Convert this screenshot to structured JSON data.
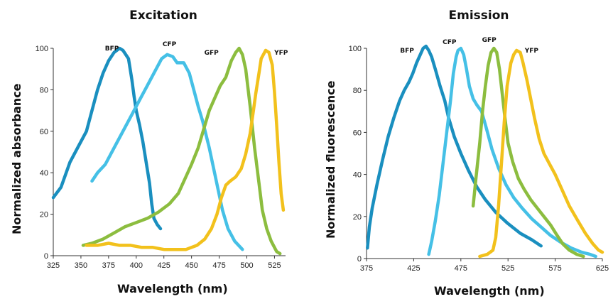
{
  "chart_data": [
    {
      "type": "line",
      "title": "Excitation",
      "xlabel": "Wavelength (nm)",
      "ylabel": "Normalized absorbance",
      "xlim": [
        325,
        535
      ],
      "ylim": [
        0,
        100
      ],
      "xticks": [
        325,
        350,
        375,
        400,
        425,
        450,
        475,
        500,
        525
      ],
      "yticks": [
        0,
        20,
        40,
        60,
        80,
        100
      ],
      "series": [
        {
          "name": "BFP",
          "color": "#1a8fbf",
          "label_at": [
            378,
            99
          ],
          "points": [
            [
              325,
              28
            ],
            [
              332,
              33
            ],
            [
              340,
              45
            ],
            [
              348,
              53
            ],
            [
              355,
              60
            ],
            [
              360,
              70
            ],
            [
              365,
              80
            ],
            [
              370,
              88
            ],
            [
              375,
              94
            ],
            [
              380,
              98
            ],
            [
              385,
              100
            ],
            [
              388,
              99
            ],
            [
              393,
              95
            ],
            [
              396,
              85
            ],
            [
              398,
              77
            ],
            [
              400,
              70
            ],
            [
              403,
              63
            ],
            [
              406,
              55
            ],
            [
              409,
              45
            ],
            [
              412,
              35
            ],
            [
              414,
              25
            ],
            [
              416,
              18
            ],
            [
              419,
              15
            ],
            [
              422,
              13
            ]
          ]
        },
        {
          "name": "CFP",
          "color": "#45c0e6",
          "label_at": [
            430,
            101
          ],
          "points": [
            [
              360,
              36
            ],
            [
              365,
              40
            ],
            [
              372,
              44
            ],
            [
              380,
              52
            ],
            [
              388,
              60
            ],
            [
              396,
              68
            ],
            [
              404,
              76
            ],
            [
              412,
              84
            ],
            [
              418,
              90
            ],
            [
              423,
              95
            ],
            [
              428,
              97
            ],
            [
              433,
              96
            ],
            [
              437,
              93
            ],
            [
              443,
              93
            ],
            [
              448,
              88
            ],
            [
              452,
              80
            ],
            [
              456,
              72
            ],
            [
              460,
              65
            ],
            [
              466,
              52
            ],
            [
              470,
              42
            ],
            [
              474,
              32
            ],
            [
              478,
              22
            ],
            [
              483,
              13
            ],
            [
              489,
              7
            ],
            [
              496,
              3
            ]
          ]
        },
        {
          "name": "GFP",
          "color": "#8cbd3f",
          "label_at": [
            468,
            97
          ],
          "points": [
            [
              352,
              5
            ],
            [
              360,
              6
            ],
            [
              370,
              8
            ],
            [
              380,
              11
            ],
            [
              390,
              14
            ],
            [
              400,
              16
            ],
            [
              410,
              18
            ],
            [
              420,
              21
            ],
            [
              430,
              25
            ],
            [
              438,
              30
            ],
            [
              444,
              37
            ],
            [
              450,
              44
            ],
            [
              456,
              52
            ],
            [
              461,
              61
            ],
            [
              466,
              70
            ],
            [
              471,
              76
            ],
            [
              476,
              82
            ],
            [
              481,
              86
            ],
            [
              486,
              94
            ],
            [
              490,
              98
            ],
            [
              493,
              100
            ],
            [
              496,
              97
            ],
            [
              499,
              90
            ],
            [
              503,
              72
            ],
            [
              507,
              52
            ],
            [
              511,
              35
            ],
            [
              514,
              22
            ],
            [
              518,
              13
            ],
            [
              522,
              7
            ],
            [
              527,
              2
            ],
            [
              530,
              1
            ]
          ]
        },
        {
          "name": "YFP",
          "color": "#f2c11c",
          "label_at": [
            531,
            97
          ],
          "points": [
            [
              355,
              5
            ],
            [
              365,
              5
            ],
            [
              375,
              6
            ],
            [
              385,
              5
            ],
            [
              395,
              5
            ],
            [
              405,
              4
            ],
            [
              415,
              4
            ],
            [
              425,
              3
            ],
            [
              435,
              3
            ],
            [
              445,
              3
            ],
            [
              455,
              5
            ],
            [
              462,
              8
            ],
            [
              468,
              13
            ],
            [
              473,
              20
            ],
            [
              477,
              28
            ],
            [
              481,
              34
            ],
            [
              485,
              36
            ],
            [
              490,
              38
            ],
            [
              495,
              42
            ],
            [
              499,
              49
            ],
            [
              503,
              59
            ],
            [
              506,
              70
            ],
            [
              508,
              78
            ],
            [
              511,
              88
            ],
            [
              513,
              95
            ],
            [
              517,
              99
            ],
            [
              520,
              98
            ],
            [
              523,
              92
            ],
            [
              525,
              79
            ],
            [
              527,
              63
            ],
            [
              529,
              45
            ],
            [
              531,
              30
            ],
            [
              533,
              22
            ]
          ]
        }
      ]
    },
    {
      "type": "line",
      "title": "Emission",
      "xlabel": "Wavelength (nm)",
      "ylabel": "Normalized fluorescence",
      "xlim": [
        375,
        625
      ],
      "ylim": [
        0,
        100
      ],
      "xticks": [
        375,
        425,
        475,
        525,
        575,
        625
      ],
      "yticks": [
        0,
        20,
        40,
        60,
        80,
        100
      ],
      "series": [
        {
          "name": "BFP",
          "color": "#1a8fbf",
          "label_at": [
            418,
            98
          ],
          "points": [
            [
              376,
              5
            ],
            [
              378,
              15
            ],
            [
              381,
              24
            ],
            [
              386,
              35
            ],
            [
              392,
              47
            ],
            [
              398,
              58
            ],
            [
              404,
              67
            ],
            [
              410,
              75
            ],
            [
              415,
              80
            ],
            [
              420,
              84
            ],
            [
              424,
              88
            ],
            [
              428,
              93
            ],
            [
              432,
              97
            ],
            [
              435,
              100
            ],
            [
              438,
              101
            ],
            [
              441,
              99
            ],
            [
              444,
              96
            ],
            [
              448,
              90
            ],
            [
              453,
              82
            ],
            [
              458,
              75
            ],
            [
              462,
              67
            ],
            [
              468,
              58
            ],
            [
              475,
              50
            ],
            [
              483,
              42
            ],
            [
              492,
              34
            ],
            [
              501,
              28
            ],
            [
              512,
              22
            ],
            [
              524,
              17
            ],
            [
              538,
              12
            ],
            [
              550,
              9
            ],
            [
              560,
              6
            ]
          ]
        },
        {
          "name": "CFP",
          "color": "#45c0e6",
          "label_at": [
            463,
            102
          ],
          "points": [
            [
              441,
              2
            ],
            [
              444,
              8
            ],
            [
              448,
              18
            ],
            [
              452,
              30
            ],
            [
              456,
              45
            ],
            [
              460,
              60
            ],
            [
              464,
              75
            ],
            [
              467,
              88
            ],
            [
              470,
              96
            ],
            [
              472,
              99
            ],
            [
              475,
              100
            ],
            [
              478,
              97
            ],
            [
              481,
              90
            ],
            [
              484,
              82
            ],
            [
              488,
              76
            ],
            [
              492,
              73
            ],
            [
              497,
              70
            ],
            [
              502,
              62
            ],
            [
              508,
              52
            ],
            [
              515,
              43
            ],
            [
              523,
              35
            ],
            [
              531,
              29
            ],
            [
              540,
              24
            ],
            [
              550,
              19
            ],
            [
              560,
              15
            ],
            [
              570,
              11
            ],
            [
              580,
              8
            ],
            [
              592,
              5
            ],
            [
              603,
              3
            ],
            [
              612,
              2
            ],
            [
              618,
              1
            ]
          ]
        },
        {
          "name": "GFP",
          "color": "#8cbd3f",
          "label_at": [
            505,
            103
          ],
          "points": [
            [
              488,
              25
            ],
            [
              491,
              38
            ],
            [
              495,
              55
            ],
            [
              498,
              70
            ],
            [
              501,
              82
            ],
            [
              504,
              92
            ],
            [
              507,
              98
            ],
            [
              510,
              100
            ],
            [
              513,
              98
            ],
            [
              516,
              90
            ],
            [
              519,
              78
            ],
            [
              522,
              66
            ],
            [
              525,
              55
            ],
            [
              530,
              46
            ],
            [
              536,
              38
            ],
            [
              542,
              33
            ],
            [
              549,
              28
            ],
            [
              556,
              24
            ],
            [
              563,
              20
            ],
            [
              570,
              16
            ],
            [
              577,
              11
            ],
            [
              583,
              7
            ],
            [
              590,
              4
            ],
            [
              598,
              2
            ],
            [
              605,
              1
            ]
          ]
        },
        {
          "name": "YFP",
          "color": "#f2c11c",
          "label_at": [
            550,
            98
          ],
          "points": [
            [
              495,
              1
            ],
            [
              503,
              2
            ],
            [
              509,
              4
            ],
            [
              512,
              10
            ],
            [
              515,
              25
            ],
            [
              518,
              45
            ],
            [
              521,
              65
            ],
            [
              524,
              82
            ],
            [
              528,
              93
            ],
            [
              531,
              97
            ],
            [
              534,
              99
            ],
            [
              538,
              98
            ],
            [
              541,
              93
            ],
            [
              545,
              85
            ],
            [
              549,
              76
            ],
            [
              553,
              67
            ],
            [
              558,
              57
            ],
            [
              563,
              50
            ],
            [
              569,
              45
            ],
            [
              575,
              40
            ],
            [
              582,
              33
            ],
            [
              590,
              25
            ],
            [
              599,
              18
            ],
            [
              607,
              12
            ],
            [
              615,
              7
            ],
            [
              621,
              4
            ],
            [
              625,
              3
            ]
          ]
        }
      ]
    }
  ]
}
